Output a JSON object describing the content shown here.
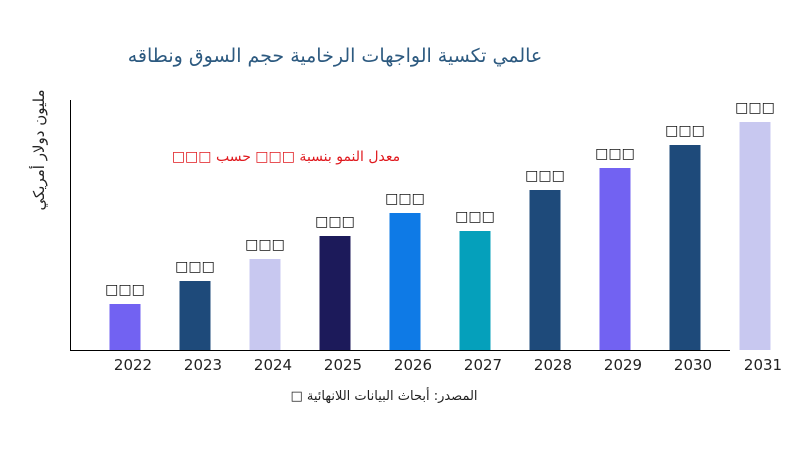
{
  "chart_data": {
    "type": "bar",
    "title": "عالمي تكسية الواجهات الرخامية حجم السوق ونطاقه",
    "ylabel": "مليون دولار أمريكي",
    "xlabel": "",
    "annotation": "معدل النمو بنسبة □□□ حسب □□□",
    "source": "المصدر: أبحاث البيانات اللانهائية □",
    "categories": [
      "2022",
      "2023",
      "2024",
      "2025",
      "2026",
      "2027",
      "2028",
      "2029",
      "2030",
      "2031"
    ],
    "values": [
      46,
      69,
      91,
      114,
      137,
      119,
      160,
      182,
      205,
      228
    ],
    "data_labels": [
      "□□□",
      "□□□",
      "□□□",
      "□□□",
      "□□□",
      "□□□",
      "□□□",
      "□□□",
      "□□□",
      "□□□"
    ],
    "colors": [
      "#7262f2",
      "#1e4a7a",
      "#c8c8f0",
      "#1c1a5a",
      "#0e7ae6",
      "#05a0bb",
      "#1e4a7a",
      "#7262f2",
      "#1e4a7a",
      "#c8c8f0"
    ],
    "ylim": [
      0,
      250
    ],
    "grid": false,
    "y_ticks_shown": false
  }
}
